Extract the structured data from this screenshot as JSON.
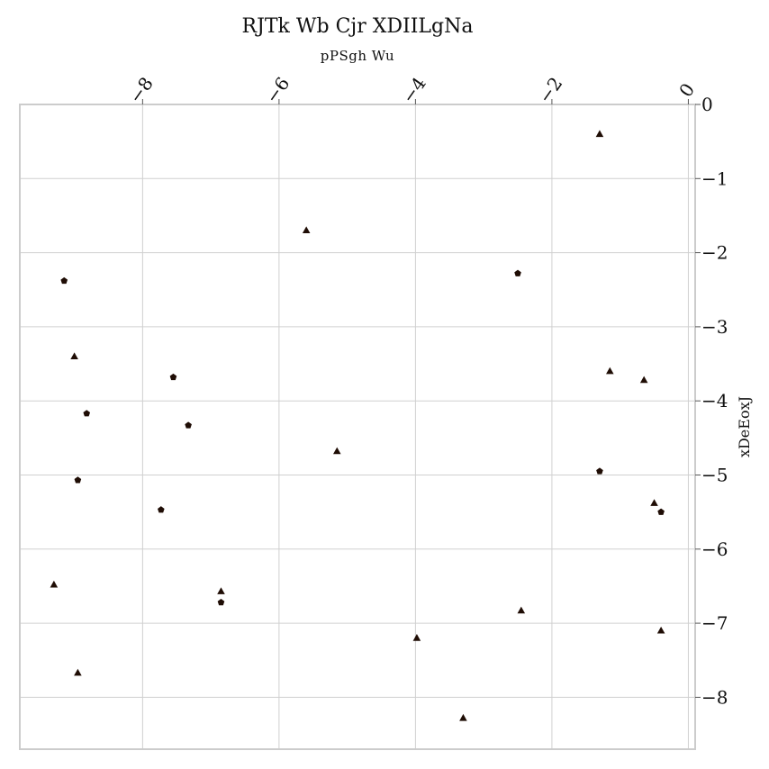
{
  "chart_data": {
    "type": "scatter",
    "title": "RJTk Wb  Cjr XDIILgNa",
    "subtitle": "pPSgh  Wu",
    "xlabel": "",
    "ylabel": "xDeEoxJ",
    "xlim": [
      -9.8,
      0.1
    ],
    "ylim": [
      -8.7,
      0
    ],
    "x_ticks": [
      -8,
      -6,
      -4,
      -2,
      0
    ],
    "y_ticks": [
      0,
      -1,
      -2,
      -3,
      -4,
      -5,
      -6,
      -7,
      -8
    ],
    "x_axis_position": "top",
    "y_axis_position": "right",
    "grid": true,
    "series": [
      {
        "marker": "triangle",
        "color": "#1f0d05",
        "points": [
          [
            -1.3,
            -0.4
          ],
          [
            -5.6,
            -1.7
          ],
          [
            -9.0,
            -3.4
          ],
          [
            -1.15,
            -3.6
          ],
          [
            -0.65,
            -3.72
          ],
          [
            -5.15,
            -4.68
          ],
          [
            -0.5,
            -5.38
          ],
          [
            -9.3,
            -6.48
          ],
          [
            -6.85,
            -6.57
          ],
          [
            -2.45,
            -6.83
          ],
          [
            -3.98,
            -7.2
          ],
          [
            -0.4,
            -7.1
          ],
          [
            -8.95,
            -7.67
          ],
          [
            -3.3,
            -8.28
          ]
        ]
      },
      {
        "marker": "pentagon",
        "color": "#1f0d05",
        "points": [
          [
            -9.15,
            -2.38
          ],
          [
            -2.5,
            -2.28
          ],
          [
            -7.55,
            -3.68
          ],
          [
            -8.82,
            -4.17
          ],
          [
            -7.33,
            -4.33
          ],
          [
            -1.3,
            -4.95
          ],
          [
            -8.95,
            -5.07
          ],
          [
            -7.73,
            -5.47
          ],
          [
            -0.4,
            -5.5
          ],
          [
            -6.85,
            -6.72
          ]
        ]
      }
    ]
  }
}
